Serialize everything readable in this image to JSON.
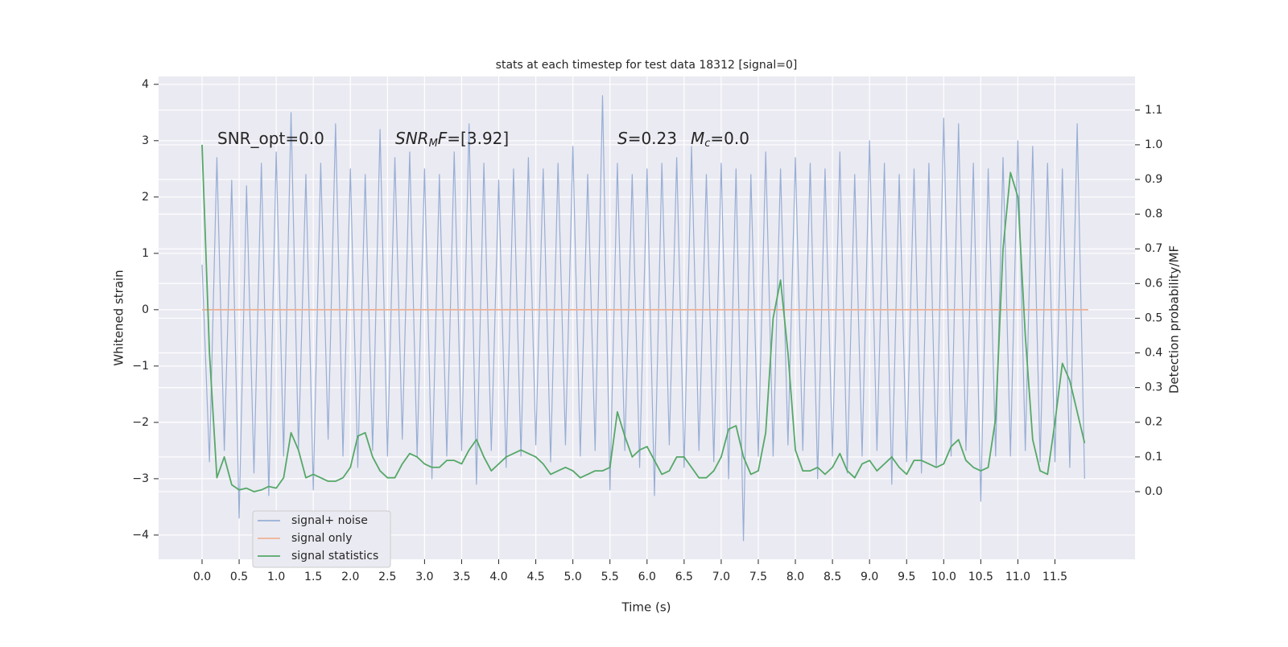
{
  "chart_data": {
    "type": "line",
    "title": "stats at each timestep for test data 18312 [signal=0]",
    "xlabel": "Time (s)",
    "ylabel": "Whitened strain",
    "y2label": "Detection probability/MF",
    "grid": true,
    "legend": "lower left",
    "xlim": [
      -0.586,
      12.58
    ],
    "ylim": [
      -4.43,
      4.14
    ],
    "y2lim": [
      -0.195,
      1.197
    ],
    "xticks": [
      {
        "value": 0,
        "label": "0.0"
      },
      {
        "value": 0.5,
        "label": "0.5"
      },
      {
        "value": 1,
        "label": "1.0"
      },
      {
        "value": 1.5,
        "label": "1.5"
      },
      {
        "value": 2,
        "label": "2.0"
      },
      {
        "value": 2.5,
        "label": "2.5"
      },
      {
        "value": 3,
        "label": "3.0"
      },
      {
        "value": 3.5,
        "label": "3.5"
      },
      {
        "value": 4,
        "label": "4.0"
      },
      {
        "value": 4.5,
        "label": "4.5"
      },
      {
        "value": 5,
        "label": "5.0"
      },
      {
        "value": 5.5,
        "label": "5.5"
      },
      {
        "value": 6,
        "label": "6.0"
      },
      {
        "value": 6.5,
        "label": "6.5"
      },
      {
        "value": 7,
        "label": "7.0"
      },
      {
        "value": 7.5,
        "label": "7.5"
      },
      {
        "value": 8,
        "label": "8.0"
      },
      {
        "value": 8.5,
        "label": "8.5"
      },
      {
        "value": 9,
        "label": "9.0"
      },
      {
        "value": 9.5,
        "label": "9.5"
      },
      {
        "value": 10,
        "label": "10.0"
      },
      {
        "value": 10.5,
        "label": "10.5"
      },
      {
        "value": 11,
        "label": "11.0"
      },
      {
        "value": 11.5,
        "label": "11.5"
      }
    ],
    "yticks": [
      {
        "value": -4,
        "label": "−4"
      },
      {
        "value": -3,
        "label": "−3"
      },
      {
        "value": -2,
        "label": "−2"
      },
      {
        "value": -1,
        "label": "−1"
      },
      0,
      1,
      2,
      3,
      4
    ],
    "y2ticks": [
      {
        "value": 0,
        "label": "0.0"
      },
      {
        "value": 0.1,
        "label": "0.1"
      },
      {
        "value": 0.2,
        "label": "0.2"
      },
      {
        "value": 0.3,
        "label": "0.3"
      },
      {
        "value": 0.4,
        "label": "0.4"
      },
      {
        "value": 0.5,
        "label": "0.5"
      },
      {
        "value": 0.6,
        "label": "0.6"
      },
      {
        "value": 0.7,
        "label": "0.7"
      },
      {
        "value": 0.8,
        "label": "0.8"
      },
      {
        "value": 0.9,
        "label": "0.9"
      },
      {
        "value": 1,
        "label": "1.0"
      },
      {
        "value": 1.1,
        "label": "1.1"
      }
    ],
    "annotations": [
      [
        {
          "text": "SNR_opt=0.0"
        }
      ],
      [
        {
          "text": "SNR",
          "italic": true
        },
        {
          "text": "M",
          "italic": true,
          "sub": true
        },
        {
          "text": "F",
          "italic": true
        },
        {
          "text": "=[3.92]"
        }
      ],
      [
        {
          "text": "S",
          "italic": true
        },
        {
          "text": "=0.23"
        }
      ],
      [
        {
          "text": "M",
          "italic": true
        },
        {
          "text": "c",
          "italic": true,
          "sub": true
        },
        {
          "text": "=0.0"
        }
      ]
    ],
    "x": [
      0,
      0.1,
      0.2,
      0.3,
      0.4,
      0.5,
      0.6,
      0.7,
      0.8,
      0.9,
      1,
      1.1,
      1.2,
      1.3,
      1.4,
      1.5,
      1.6,
      1.7,
      1.8,
      1.9,
      2,
      2.1,
      2.2,
      2.3,
      2.4,
      2.5,
      2.6,
      2.7,
      2.8,
      2.9,
      3,
      3.1,
      3.2,
      3.3,
      3.4,
      3.5,
      3.6,
      3.7,
      3.8,
      3.9,
      4,
      4.1,
      4.2,
      4.3,
      4.4,
      4.5,
      4.6,
      4.7,
      4.8,
      4.9,
      5,
      5.1,
      5.2,
      5.3,
      5.4,
      5.5,
      5.6,
      5.7,
      5.8,
      5.9,
      6,
      6.1,
      6.2,
      6.3,
      6.4,
      6.5,
      6.6,
      6.7,
      6.8,
      6.9,
      7,
      7.1,
      7.2,
      7.3,
      7.4,
      7.5,
      7.6,
      7.7,
      7.8,
      7.9,
      8,
      8.1,
      8.2,
      8.3,
      8.4,
      8.5,
      8.6,
      8.7,
      8.8,
      8.9,
      9,
      9.1,
      9.2,
      9.3,
      9.4,
      9.5,
      9.6,
      9.7,
      9.8,
      9.9,
      10,
      10.1,
      10.2,
      10.3,
      10.4,
      10.5,
      10.6,
      10.7,
      10.8,
      10.9,
      11,
      11.1,
      11.2,
      11.3,
      11.4,
      11.5,
      11.6,
      11.7,
      11.8,
      11.9
    ],
    "series": [
      {
        "name": "signal+ noise",
        "color": "#98aed4",
        "values": [
          0.8,
          -2.7,
          2.7,
          -2.5,
          2.3,
          -3.7,
          2.2,
          -2.9,
          2.6,
          -3.3,
          2.8,
          -2.6,
          3.5,
          -2.5,
          2.4,
          -3.2,
          2.6,
          -2.3,
          3.3,
          -2.6,
          2.5,
          -2.8,
          2.4,
          -2.5,
          3.2,
          -2.6,
          2.7,
          -2.3,
          2.8,
          -2.6,
          2.5,
          -3.0,
          2.4,
          -2.6,
          2.8,
          -2.5,
          3.3,
          -3.1,
          2.6,
          -2.5,
          2.3,
          -2.8,
          2.5,
          -2.6,
          2.7,
          -2.4,
          2.5,
          -2.7,
          2.6,
          -2.4,
          2.9,
          -2.6,
          2.4,
          -2.5,
          3.8,
          -3.2,
          2.6,
          -2.5,
          2.4,
          -2.8,
          2.5,
          -3.3,
          2.6,
          -2.4,
          2.7,
          -2.8,
          2.9,
          -2.5,
          2.4,
          -2.7,
          2.6,
          -3.0,
          2.5,
          -4.1,
          2.4,
          -2.6,
          2.8,
          -2.6,
          2.5,
          -2.4,
          2.7,
          -2.5,
          2.6,
          -3.0,
          2.5,
          -2.6,
          2.8,
          -2.9,
          2.4,
          -2.6,
          3.0,
          -2.5,
          2.6,
          -3.1,
          2.4,
          -2.7,
          2.5,
          -2.9,
          2.6,
          -2.8,
          3.4,
          -2.6,
          3.3,
          -2.5,
          2.6,
          -3.4,
          2.5,
          -2.6,
          2.7,
          -2.6,
          3.0,
          -2.5,
          2.9,
          -2.7,
          2.6,
          -2.7,
          2.5,
          -2.8,
          3.3,
          -3.0
        ]
      },
      {
        "name": "signal only",
        "color": "#eeb295",
        "x": [
          0,
          11.95
        ],
        "values": [
          0,
          0
        ]
      },
      {
        "name": "signal statistics",
        "color": "#55a868",
        "axis": "y2",
        "values": [
          1.0,
          0.4,
          0.04,
          0.1,
          0.02,
          0.005,
          0.01,
          0.0,
          0.005,
          0.015,
          0.01,
          0.04,
          0.17,
          0.12,
          0.04,
          0.05,
          0.04,
          0.03,
          0.03,
          0.04,
          0.07,
          0.16,
          0.17,
          0.1,
          0.06,
          0.04,
          0.04,
          0.08,
          0.11,
          0.1,
          0.08,
          0.07,
          0.07,
          0.09,
          0.09,
          0.08,
          0.12,
          0.15,
          0.1,
          0.06,
          0.08,
          0.1,
          0.11,
          0.12,
          0.11,
          0.1,
          0.08,
          0.05,
          0.06,
          0.07,
          0.06,
          0.04,
          0.05,
          0.06,
          0.06,
          0.07,
          0.23,
          0.16,
          0.1,
          0.12,
          0.13,
          0.09,
          0.05,
          0.06,
          0.1,
          0.1,
          0.07,
          0.04,
          0.04,
          0.06,
          0.1,
          0.18,
          0.19,
          0.1,
          0.05,
          0.06,
          0.17,
          0.5,
          0.61,
          0.4,
          0.12,
          0.06,
          0.06,
          0.07,
          0.05,
          0.07,
          0.11,
          0.06,
          0.04,
          0.08,
          0.09,
          0.06,
          0.08,
          0.1,
          0.07,
          0.05,
          0.09,
          0.09,
          0.08,
          0.07,
          0.08,
          0.13,
          0.15,
          0.09,
          0.07,
          0.06,
          0.07,
          0.21,
          0.7,
          0.92,
          0.85,
          0.45,
          0.15,
          0.06,
          0.05,
          0.2,
          0.37,
          0.32,
          0.23,
          0.14
        ]
      }
    ]
  }
}
